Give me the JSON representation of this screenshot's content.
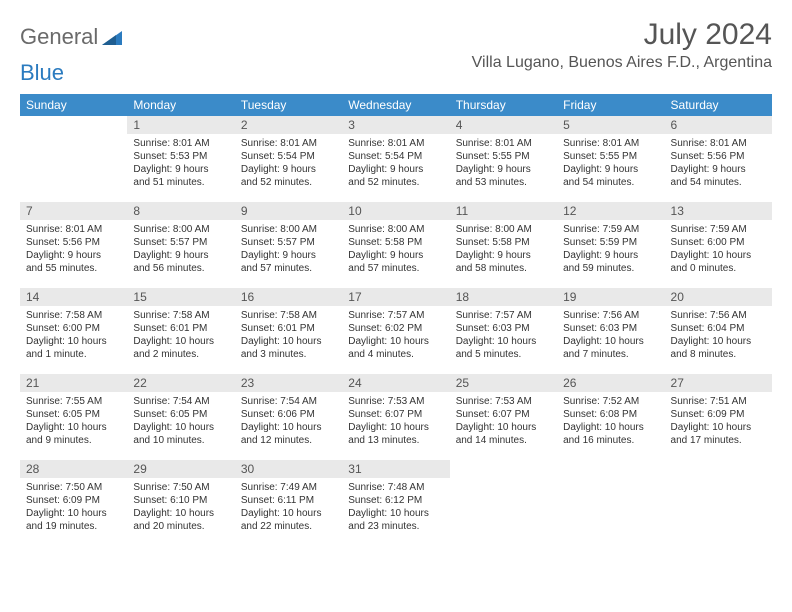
{
  "logo": {
    "word1": "General",
    "word2": "Blue"
  },
  "title": "July 2024",
  "location": "Villa Lugano, Buenos Aires F.D., Argentina",
  "columns": [
    "Sunday",
    "Monday",
    "Tuesday",
    "Wednesday",
    "Thursday",
    "Friday",
    "Saturday"
  ],
  "header_bg": "#3b8bc9",
  "daynum_bg": "#e9e9e9",
  "weeks": [
    {
      "nums": [
        "",
        "1",
        "2",
        "3",
        "4",
        "5",
        "6"
      ],
      "cells": [
        {
          "empty": true
        },
        {
          "sunrise": "Sunrise: 8:01 AM",
          "sunset": "Sunset: 5:53 PM",
          "day1": "Daylight: 9 hours",
          "day2": "and 51 minutes."
        },
        {
          "sunrise": "Sunrise: 8:01 AM",
          "sunset": "Sunset: 5:54 PM",
          "day1": "Daylight: 9 hours",
          "day2": "and 52 minutes."
        },
        {
          "sunrise": "Sunrise: 8:01 AM",
          "sunset": "Sunset: 5:54 PM",
          "day1": "Daylight: 9 hours",
          "day2": "and 52 minutes."
        },
        {
          "sunrise": "Sunrise: 8:01 AM",
          "sunset": "Sunset: 5:55 PM",
          "day1": "Daylight: 9 hours",
          "day2": "and 53 minutes."
        },
        {
          "sunrise": "Sunrise: 8:01 AM",
          "sunset": "Sunset: 5:55 PM",
          "day1": "Daylight: 9 hours",
          "day2": "and 54 minutes."
        },
        {
          "sunrise": "Sunrise: 8:01 AM",
          "sunset": "Sunset: 5:56 PM",
          "day1": "Daylight: 9 hours",
          "day2": "and 54 minutes."
        }
      ]
    },
    {
      "nums": [
        "7",
        "8",
        "9",
        "10",
        "11",
        "12",
        "13"
      ],
      "cells": [
        {
          "sunrise": "Sunrise: 8:01 AM",
          "sunset": "Sunset: 5:56 PM",
          "day1": "Daylight: 9 hours",
          "day2": "and 55 minutes."
        },
        {
          "sunrise": "Sunrise: 8:00 AM",
          "sunset": "Sunset: 5:57 PM",
          "day1": "Daylight: 9 hours",
          "day2": "and 56 minutes."
        },
        {
          "sunrise": "Sunrise: 8:00 AM",
          "sunset": "Sunset: 5:57 PM",
          "day1": "Daylight: 9 hours",
          "day2": "and 57 minutes."
        },
        {
          "sunrise": "Sunrise: 8:00 AM",
          "sunset": "Sunset: 5:58 PM",
          "day1": "Daylight: 9 hours",
          "day2": "and 57 minutes."
        },
        {
          "sunrise": "Sunrise: 8:00 AM",
          "sunset": "Sunset: 5:58 PM",
          "day1": "Daylight: 9 hours",
          "day2": "and 58 minutes."
        },
        {
          "sunrise": "Sunrise: 7:59 AM",
          "sunset": "Sunset: 5:59 PM",
          "day1": "Daylight: 9 hours",
          "day2": "and 59 minutes."
        },
        {
          "sunrise": "Sunrise: 7:59 AM",
          "sunset": "Sunset: 6:00 PM",
          "day1": "Daylight: 10 hours",
          "day2": "and 0 minutes."
        }
      ]
    },
    {
      "nums": [
        "14",
        "15",
        "16",
        "17",
        "18",
        "19",
        "20"
      ],
      "cells": [
        {
          "sunrise": "Sunrise: 7:58 AM",
          "sunset": "Sunset: 6:00 PM",
          "day1": "Daylight: 10 hours",
          "day2": "and 1 minute."
        },
        {
          "sunrise": "Sunrise: 7:58 AM",
          "sunset": "Sunset: 6:01 PM",
          "day1": "Daylight: 10 hours",
          "day2": "and 2 minutes."
        },
        {
          "sunrise": "Sunrise: 7:58 AM",
          "sunset": "Sunset: 6:01 PM",
          "day1": "Daylight: 10 hours",
          "day2": "and 3 minutes."
        },
        {
          "sunrise": "Sunrise: 7:57 AM",
          "sunset": "Sunset: 6:02 PM",
          "day1": "Daylight: 10 hours",
          "day2": "and 4 minutes."
        },
        {
          "sunrise": "Sunrise: 7:57 AM",
          "sunset": "Sunset: 6:03 PM",
          "day1": "Daylight: 10 hours",
          "day2": "and 5 minutes."
        },
        {
          "sunrise": "Sunrise: 7:56 AM",
          "sunset": "Sunset: 6:03 PM",
          "day1": "Daylight: 10 hours",
          "day2": "and 7 minutes."
        },
        {
          "sunrise": "Sunrise: 7:56 AM",
          "sunset": "Sunset: 6:04 PM",
          "day1": "Daylight: 10 hours",
          "day2": "and 8 minutes."
        }
      ]
    },
    {
      "nums": [
        "21",
        "22",
        "23",
        "24",
        "25",
        "26",
        "27"
      ],
      "cells": [
        {
          "sunrise": "Sunrise: 7:55 AM",
          "sunset": "Sunset: 6:05 PM",
          "day1": "Daylight: 10 hours",
          "day2": "and 9 minutes."
        },
        {
          "sunrise": "Sunrise: 7:54 AM",
          "sunset": "Sunset: 6:05 PM",
          "day1": "Daylight: 10 hours",
          "day2": "and 10 minutes."
        },
        {
          "sunrise": "Sunrise: 7:54 AM",
          "sunset": "Sunset: 6:06 PM",
          "day1": "Daylight: 10 hours",
          "day2": "and 12 minutes."
        },
        {
          "sunrise": "Sunrise: 7:53 AM",
          "sunset": "Sunset: 6:07 PM",
          "day1": "Daylight: 10 hours",
          "day2": "and 13 minutes."
        },
        {
          "sunrise": "Sunrise: 7:53 AM",
          "sunset": "Sunset: 6:07 PM",
          "day1": "Daylight: 10 hours",
          "day2": "and 14 minutes."
        },
        {
          "sunrise": "Sunrise: 7:52 AM",
          "sunset": "Sunset: 6:08 PM",
          "day1": "Daylight: 10 hours",
          "day2": "and 16 minutes."
        },
        {
          "sunrise": "Sunrise: 7:51 AM",
          "sunset": "Sunset: 6:09 PM",
          "day1": "Daylight: 10 hours",
          "day2": "and 17 minutes."
        }
      ]
    },
    {
      "nums": [
        "28",
        "29",
        "30",
        "31",
        "",
        "",
        ""
      ],
      "cells": [
        {
          "sunrise": "Sunrise: 7:50 AM",
          "sunset": "Sunset: 6:09 PM",
          "day1": "Daylight: 10 hours",
          "day2": "and 19 minutes."
        },
        {
          "sunrise": "Sunrise: 7:50 AM",
          "sunset": "Sunset: 6:10 PM",
          "day1": "Daylight: 10 hours",
          "day2": "and 20 minutes."
        },
        {
          "sunrise": "Sunrise: 7:49 AM",
          "sunset": "Sunset: 6:11 PM",
          "day1": "Daylight: 10 hours",
          "day2": "and 22 minutes."
        },
        {
          "sunrise": "Sunrise: 7:48 AM",
          "sunset": "Sunset: 6:12 PM",
          "day1": "Daylight: 10 hours",
          "day2": "and 23 minutes."
        },
        {
          "empty": true
        },
        {
          "empty": true
        },
        {
          "empty": true
        }
      ]
    }
  ]
}
